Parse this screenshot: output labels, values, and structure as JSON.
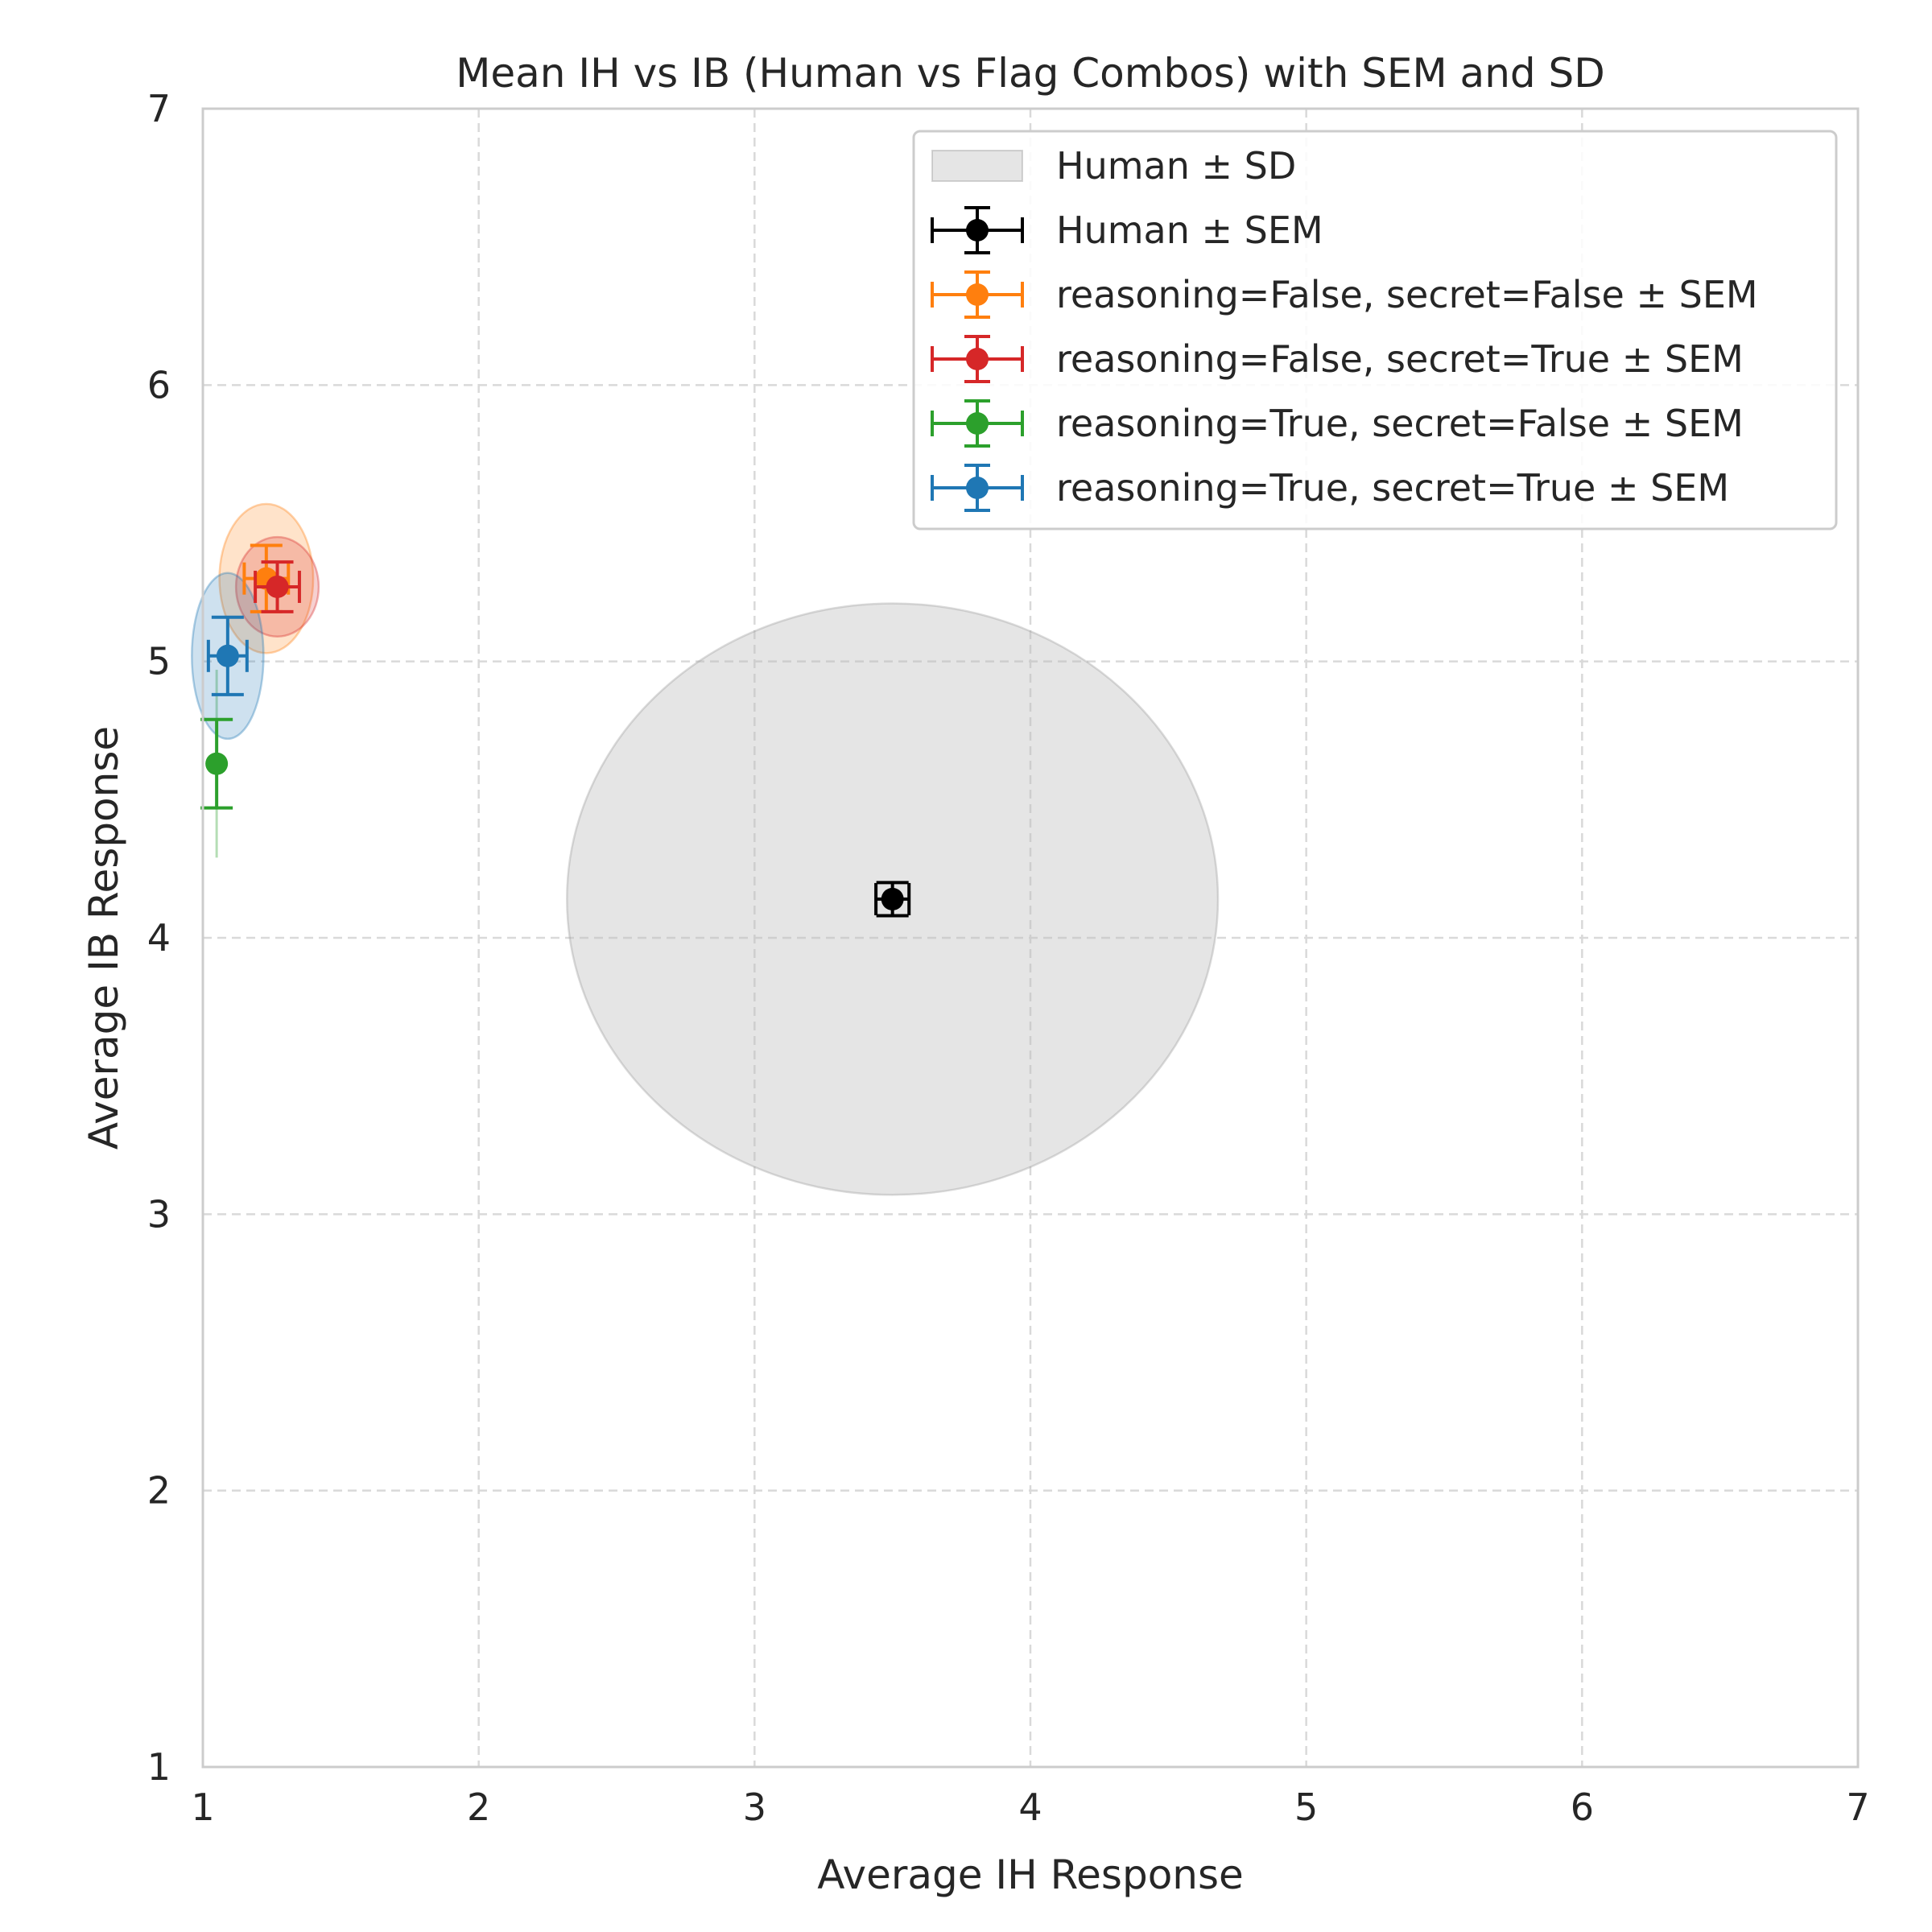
{
  "chart_data": {
    "type": "scatter",
    "title": "Mean IH vs IB (Human vs Flag Combos) with SEM and SD",
    "xlabel": "Average IH Response",
    "ylabel": "Average IB Response",
    "xlim": [
      1,
      7
    ],
    "ylim": [
      1,
      7
    ],
    "x_ticks": [
      "1",
      "2",
      "3",
      "4",
      "5",
      "6",
      "7"
    ],
    "y_ticks": [
      "1",
      "2",
      "3",
      "4",
      "5",
      "6",
      "7"
    ],
    "grid": true,
    "legend_position": "top-right",
    "legend": [
      {
        "label": "Human ± SD",
        "kind": "patch",
        "color": "#bdbdbd"
      },
      {
        "label": "Human ± SEM",
        "kind": "errorbar",
        "color": "#000000"
      },
      {
        "label": "reasoning=False, secret=False ± SEM",
        "kind": "errorbar",
        "color": "#ff7f0e"
      },
      {
        "label": "reasoning=False, secret=True ± SEM",
        "kind": "errorbar",
        "color": "#d62728"
      },
      {
        "label": "reasoning=True, secret=False ± SEM",
        "kind": "errorbar",
        "color": "#2ca02c"
      },
      {
        "label": "reasoning=True, secret=True ± SEM",
        "kind": "errorbar",
        "color": "#1f77b4"
      }
    ],
    "series": [
      {
        "name": "Human",
        "color": "#000000",
        "x": 3.5,
        "y": 4.14,
        "sem_x": 0.06,
        "sem_y": 0.06,
        "sd_x": 1.18,
        "sd_y": 1.07
      },
      {
        "name": "reasoning=False, secret=False",
        "color": "#ff7f0e",
        "x": 1.23,
        "y": 5.3,
        "sem_x": 0.08,
        "sem_y": 0.12,
        "sd_x": 0.17,
        "sd_y": 0.27
      },
      {
        "name": "reasoning=False, secret=True",
        "color": "#d62728",
        "x": 1.27,
        "y": 5.27,
        "sem_x": 0.08,
        "sem_y": 0.09,
        "sd_x": 0.15,
        "sd_y": 0.18
      },
      {
        "name": "reasoning=True, secret=False",
        "color": "#2ca02c",
        "x": 1.05,
        "y": 4.63,
        "sem_x": 0.0,
        "sem_y": 0.16,
        "sd_x": 0.0,
        "sd_y": 0.34
      },
      {
        "name": "reasoning=True, secret=True",
        "color": "#1f77b4",
        "x": 1.09,
        "y": 5.02,
        "sem_x": 0.07,
        "sem_y": 0.14,
        "sd_x": 0.13,
        "sd_y": 0.3
      }
    ]
  }
}
